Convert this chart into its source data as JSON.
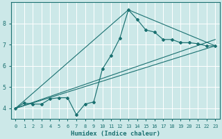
{
  "xlabel": "Humidex (Indice chaleur)",
  "bg_color": "#cce8e8",
  "grid_color": "#ffffff",
  "line_color": "#1a7070",
  "xlim": [
    -0.5,
    23.5
  ],
  "ylim": [
    3.5,
    9.0
  ],
  "yticks": [
    4,
    5,
    6,
    7,
    8
  ],
  "xticks": [
    0,
    1,
    2,
    3,
    4,
    5,
    6,
    7,
    8,
    9,
    10,
    11,
    12,
    13,
    14,
    15,
    16,
    17,
    18,
    19,
    20,
    21,
    22,
    23
  ],
  "series1_x": [
    0,
    1,
    2,
    3,
    4,
    5,
    6,
    7,
    8,
    9,
    10,
    11,
    12,
    13,
    14,
    15,
    16,
    17,
    18,
    19,
    20,
    21,
    22,
    23
  ],
  "series1_y": [
    4.0,
    4.25,
    4.2,
    4.2,
    4.45,
    4.5,
    4.5,
    3.7,
    4.2,
    4.3,
    5.85,
    6.5,
    7.3,
    8.65,
    8.2,
    7.7,
    7.6,
    7.25,
    7.25,
    7.1,
    7.1,
    7.05,
    6.95,
    6.95
  ],
  "trend1_x": [
    0,
    23
  ],
  "trend1_y": [
    4.0,
    6.95
  ],
  "trend2_x": [
    0,
    13,
    23
  ],
  "trend2_y": [
    4.0,
    8.65,
    6.95
  ],
  "trend3_x": [
    0,
    23
  ],
  "trend3_y": [
    4.0,
    7.25
  ]
}
